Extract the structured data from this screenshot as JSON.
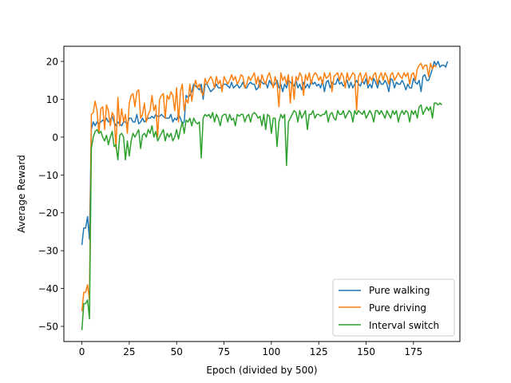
{
  "chart_data": {
    "type": "line",
    "title": "",
    "xlabel": "Epoch (divided by 500)",
    "ylabel": "Average Reward",
    "xlim": [
      -9.5,
      199.5
    ],
    "ylim": [
      -54,
      24
    ],
    "xticks": [
      0,
      25,
      50,
      75,
      100,
      125,
      150,
      175
    ],
    "yticks": [
      -50,
      -40,
      -30,
      -20,
      -10,
      0,
      10,
      20
    ],
    "grid": false,
    "legend_position": "lower right",
    "series": [
      {
        "name": "Pure walking",
        "color": "#1f77b4",
        "x_start": 0,
        "x_step": 1,
        "values": [
          -28.5,
          -24,
          -24,
          -21,
          -27,
          2,
          4,
          3,
          4,
          3.5,
          4,
          4.5,
          4,
          5,
          4,
          4.5,
          5.5,
          4,
          3,
          4,
          3.5,
          3,
          4,
          4,
          3.5,
          5,
          5,
          4,
          4,
          6,
          3.5,
          4,
          5,
          4,
          4.5,
          5,
          5,
          5.5,
          5,
          6,
          5.5,
          5.5,
          6,
          5.5,
          5,
          5,
          5,
          6,
          4,
          5,
          4.5,
          6,
          5,
          3.5,
          4,
          11,
          10.5,
          11,
          12,
          14,
          13.5,
          13,
          12.5,
          14,
          10,
          14,
          14,
          13,
          12,
          12.5,
          13,
          14,
          13,
          13,
          13.5,
          14,
          14,
          13.5,
          13,
          14.5,
          13,
          13.5,
          14,
          13,
          13.5,
          14.5,
          13,
          13,
          14,
          14.5,
          14,
          14,
          12.5,
          13,
          15,
          14.5,
          14,
          14.5,
          13,
          15,
          14,
          13.5,
          14,
          15,
          13,
          14,
          12,
          14,
          13,
          15,
          14.5,
          14,
          13.5,
          15,
          13,
          14,
          12.5,
          14.5,
          13,
          14,
          13,
          15,
          14,
          14.5,
          13.5,
          14,
          13,
          15,
          12,
          14.5,
          15,
          13,
          14.5,
          14,
          14,
          15.5,
          14,
          14.5,
          13.5,
          14,
          15,
          13,
          14.5,
          13,
          14,
          15,
          14,
          13.5,
          15,
          14,
          15.5,
          13,
          14,
          13,
          15.5,
          14.5,
          13,
          15,
          14,
          14,
          15,
          14,
          12,
          15.5,
          15,
          13,
          14.5,
          14,
          14,
          15,
          14,
          12.5,
          14,
          13,
          13,
          15.5,
          14.5,
          14,
          15,
          12,
          16,
          16.5,
          15,
          15,
          16.5,
          18,
          20,
          19,
          20,
          18.5,
          19,
          19,
          18.5,
          20
        ]
      },
      {
        "name": "Pure driving",
        "color": "#ff7f0e",
        "x_start": 0,
        "x_step": 1,
        "values": [
          -46,
          -41,
          -41,
          -39,
          -43,
          6,
          6.5,
          9.5,
          7,
          1,
          7.5,
          8,
          2,
          8.5,
          7,
          3,
          6.5,
          5.5,
          -3,
          10.5,
          3,
          7.5,
          4,
          6,
          1,
          9,
          11,
          11.5,
          8,
          12,
          12.5,
          5,
          6,
          9,
          4,
          6,
          7,
          11,
          7,
          8.5,
          0,
          10,
          11,
          11.5,
          5,
          11,
          10,
          12,
          11,
          7,
          13,
          4,
          12,
          14,
          7,
          10,
          9,
          14,
          9.5,
          13,
          15,
          13,
          14,
          12,
          11,
          15.5,
          14,
          15,
          16,
          15,
          13,
          16,
          14,
          15,
          12,
          16,
          15,
          14,
          15,
          16.5,
          15,
          16,
          14,
          15,
          16.5,
          16,
          13,
          14,
          16,
          15,
          16,
          17,
          14,
          16,
          13,
          16.5,
          15,
          14,
          16,
          17,
          15,
          13,
          16,
          14,
          8,
          17,
          15,
          16,
          14,
          16.5,
          9,
          16,
          10,
          16,
          15,
          17,
          16,
          11,
          16.5,
          15,
          17,
          14,
          16,
          17,
          16.5,
          15,
          16,
          14,
          17,
          15.5,
          16,
          17,
          12,
          16,
          16.5,
          17,
          15,
          17,
          16,
          13,
          17,
          15,
          16,
          17,
          16.5,
          7,
          16,
          17,
          14.5,
          16,
          17,
          14,
          16,
          15,
          16.5,
          17,
          14,
          16,
          17,
          15,
          17,
          16,
          14,
          16.5,
          17,
          15,
          16,
          17,
          16,
          15.5,
          17,
          16,
          17,
          14,
          16.5,
          17,
          15,
          18,
          19,
          19.5,
          18,
          19,
          19,
          16,
          19.5,
          18,
          19,
          18.5
        ]
      },
      {
        "name": "Interval switch",
        "color": "#2ca02c",
        "x_start": 0,
        "x_step": 1,
        "values": [
          -51,
          -44,
          -44,
          -43,
          -48,
          -3,
          0,
          1.5,
          2,
          1,
          1.5,
          0,
          -1,
          0.5,
          -2,
          0,
          1.5,
          -2.5,
          -2,
          -6,
          0.5,
          1,
          0,
          -6,
          -1,
          -5,
          -1,
          1,
          0,
          1,
          2,
          -3,
          0.5,
          1,
          0,
          2,
          1,
          3,
          0,
          1.5,
          -1,
          0,
          1,
          2,
          -1,
          1,
          0,
          1,
          -1,
          0,
          2,
          -0.5,
          2,
          4,
          1,
          4.5,
          4,
          5,
          3,
          5,
          4,
          3.5,
          4,
          -5.5,
          5,
          6,
          5.5,
          6,
          5,
          6.5,
          4,
          6,
          5,
          3,
          5.5,
          6,
          6,
          4,
          6,
          4.5,
          5,
          3,
          6,
          5.5,
          6,
          6,
          4,
          5.5,
          6,
          4,
          6,
          6.5,
          6,
          5,
          5.5,
          3,
          6,
          2,
          6,
          5.5,
          1,
          5,
          5,
          -2.5,
          4,
          6,
          5,
          6,
          -7.5,
          4,
          5,
          6,
          7,
          6.5,
          4,
          7,
          5,
          6,
          7,
          2,
          6,
          6,
          7,
          5,
          6,
          6,
          5.5,
          6,
          6,
          7,
          4,
          6,
          6.5,
          5,
          4.5,
          7,
          6,
          6,
          7,
          5,
          6,
          7,
          6.5,
          4,
          7,
          6,
          7,
          6.5,
          6,
          7,
          5,
          6,
          7,
          6,
          4,
          7,
          7,
          6,
          7,
          6,
          5,
          7,
          6,
          5,
          7,
          6,
          7,
          4,
          6,
          7,
          6,
          7,
          6.5,
          4,
          7,
          6,
          7,
          5,
          8,
          8.5,
          6,
          7,
          8,
          7,
          8,
          5,
          9,
          9,
          8.5,
          9,
          8.5
        ]
      }
    ]
  }
}
